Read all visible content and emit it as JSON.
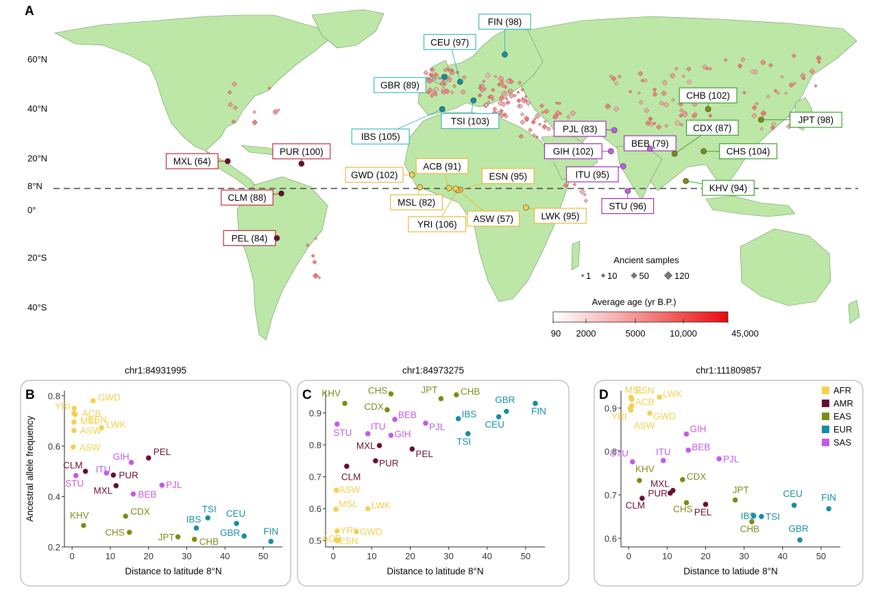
{
  "panel_a": {
    "letter": "A",
    "lat_labels": [
      {
        "text": "60°N",
        "lat": 60
      },
      {
        "text": "40°N",
        "lat": 40
      },
      {
        "text": "20°N",
        "lat": 20
      },
      {
        "text": "8°N",
        "lat": 8
      },
      {
        "text": "0°",
        "lat": 0
      },
      {
        "text": "20°S",
        "lat": -20
      },
      {
        "text": "40°S",
        "lat": -40
      }
    ],
    "populations": [
      {
        "label": "FIN (98)",
        "group": "EUR",
        "lon": 25,
        "lat": 62
      },
      {
        "label": "CEU (97)",
        "group": "EUR",
        "lon": 5,
        "lat": 51
      },
      {
        "label": "GBR (89)",
        "group": "EUR",
        "lon": -2,
        "lat": 53
      },
      {
        "label": "IBS (105)",
        "group": "EUR",
        "lon": -3,
        "lat": 40
      },
      {
        "label": "TSI (103)",
        "group": "EUR",
        "lon": 11,
        "lat": 43.5
      },
      {
        "label": "CHB (102)",
        "group": "EAS",
        "lon": 116,
        "lat": 40
      },
      {
        "label": "JPT (98)",
        "group": "EAS",
        "lon": 139.7,
        "lat": 35.7
      },
      {
        "label": "CDX (87)",
        "group": "EAS",
        "lon": 101,
        "lat": 22
      },
      {
        "label": "CHS (104)",
        "group": "EAS",
        "lon": 114,
        "lat": 23
      },
      {
        "label": "KHV (94)",
        "group": "EAS",
        "lon": 106,
        "lat": 11
      },
      {
        "label": "PJL (83)",
        "group": "SAS",
        "lon": 74,
        "lat": 31.5
      },
      {
        "label": "BEB (79)",
        "group": "SAS",
        "lon": 90,
        "lat": 24
      },
      {
        "label": "GIH (102)",
        "group": "SAS",
        "lon": 72.5,
        "lat": 23
      },
      {
        "label": "ITU (95)",
        "group": "SAS",
        "lon": 78,
        "lat": 17
      },
      {
        "label": "STU (96)",
        "group": "SAS",
        "lon": 80,
        "lat": 7
      },
      {
        "label": "MXL (64)",
        "group": "AMR",
        "lon": -99,
        "lat": 19
      },
      {
        "label": "PUR (100)",
        "group": "AMR",
        "lon": -66,
        "lat": 18
      },
      {
        "label": "CLM (88)",
        "group": "AMR",
        "lon": -75,
        "lat": 6
      },
      {
        "label": "PEL (84)",
        "group": "AMR",
        "lon": -77,
        "lat": -12
      },
      {
        "label": "GWD (102)",
        "group": "AFR",
        "lon": -16.5,
        "lat": 13.5
      },
      {
        "label": "MSL (82)",
        "group": "AFR",
        "lon": -13,
        "lat": 8.5
      },
      {
        "label": "ACB (91)",
        "group": "AFR",
        "lon": 0,
        "lat": 8.2
      },
      {
        "label": "ESN (95)",
        "group": "AFR",
        "lon": 5,
        "lat": 7.5
      },
      {
        "label": "YRI (106)",
        "group": "AFR",
        "lon": 3.9,
        "lat": 7.4
      },
      {
        "label": "ASW (57)",
        "group": "AFR",
        "lon": 3,
        "lat": 8
      },
      {
        "label": "LWK (95)",
        "group": "AFR",
        "lon": 34.5,
        "lat": 0.3
      }
    ],
    "ancient_legend": {
      "title": "Ancient samples",
      "sizes": [
        "1",
        "10",
        "50",
        "120"
      ]
    },
    "age_legend": {
      "title": "Average age (yr B.P.)",
      "ticks": [
        "90",
        "2000",
        "5000",
        "10,000",
        "45,000"
      ]
    }
  },
  "group_legend": {
    "items": [
      {
        "name": "AFR",
        "color": "#F5D04E"
      },
      {
        "name": "AMR",
        "color": "#6B0E2E"
      },
      {
        "name": "EAS",
        "color": "#7D8C16"
      },
      {
        "name": "EUR",
        "color": "#138FA3"
      },
      {
        "name": "SAS",
        "color": "#C25BE6"
      }
    ]
  },
  "colors": {
    "AFR": "#F5D04E",
    "AMR": "#6B0E2E",
    "EAS": "#7D8C16",
    "EUR": "#138FA3",
    "SAS": "#C25BE6",
    "land": "#BDE7A6",
    "box_AFR": "#E8B83A",
    "box_AMR": "#C0283C",
    "box_EAS": "#3D9C31",
    "box_EUR": "#3EB6C7",
    "box_SAS": "#9B2FB8"
  },
  "chart_data": [
    {
      "type": "scatter",
      "panel": "B",
      "title": "chr1:84931995",
      "xlabel": "Distance to latitude 8°N",
      "ylabel": "Ancestral allele frequency",
      "xlim": [
        -2,
        55
      ],
      "ylim": [
        0.2,
        0.82
      ],
      "xticks": [
        0,
        10,
        20,
        30,
        40,
        50
      ],
      "yticks": [
        0.2,
        0.4,
        0.6,
        0.8
      ],
      "points": [
        {
          "label": "YRI",
          "group": "AFR",
          "x": 0.6,
          "y": 0.75
        },
        {
          "label": "GWD",
          "group": "AFR",
          "x": 5.5,
          "y": 0.78
        },
        {
          "label": "ESN",
          "group": "AFR",
          "x": 0.5,
          "y": 0.73
        },
        {
          "label": "ACB",
          "group": "AFR",
          "x": 0.8,
          "y": 0.725
        },
        {
          "label": "LWK",
          "group": "AFR",
          "x": 7.7,
          "y": 0.673
        },
        {
          "label": "MSL",
          "group": "AFR",
          "x": 0.5,
          "y": 0.695
        },
        {
          "label": "ASW",
          "group": "AFR",
          "x": 0.5,
          "y": 0.662
        },
        {
          "label": "ASW2",
          "group": "AFR",
          "x": 0.3,
          "y": 0.596
        },
        {
          "label": "PEL",
          "group": "AMR",
          "x": 20,
          "y": 0.553
        },
        {
          "label": "CLM",
          "group": "AMR",
          "x": 3.5,
          "y": 0.5
        },
        {
          "label": "PUR",
          "group": "AMR",
          "x": 10.8,
          "y": 0.485
        },
        {
          "label": "MXL",
          "group": "AMR",
          "x": 11.5,
          "y": 0.443
        },
        {
          "label": "GIH",
          "group": "SAS",
          "x": 15.5,
          "y": 0.535
        },
        {
          "label": "ITU",
          "group": "SAS",
          "x": 9,
          "y": 0.493
        },
        {
          "label": "STU",
          "group": "SAS",
          "x": 1,
          "y": 0.483
        },
        {
          "label": "PJL",
          "group": "SAS",
          "x": 23.5,
          "y": 0.445
        },
        {
          "label": "BEB",
          "group": "SAS",
          "x": 16,
          "y": 0.41
        },
        {
          "label": "CDX",
          "group": "EAS",
          "x": 14,
          "y": 0.322
        },
        {
          "label": "KHV",
          "group": "EAS",
          "x": 3,
          "y": 0.285
        },
        {
          "label": "CHS",
          "group": "EAS",
          "x": 15,
          "y": 0.258
        },
        {
          "label": "JPT",
          "group": "EAS",
          "x": 27.7,
          "y": 0.24
        },
        {
          "label": "CHB",
          "group": "EAS",
          "x": 32,
          "y": 0.23
        },
        {
          "label": "TSI",
          "group": "EUR",
          "x": 35.5,
          "y": 0.315
        },
        {
          "label": "IBS",
          "group": "EUR",
          "x": 32.5,
          "y": 0.275
        },
        {
          "label": "CEU",
          "group": "EUR",
          "x": 43,
          "y": 0.293
        },
        {
          "label": "GBR",
          "group": "EUR",
          "x": 45,
          "y": 0.243
        },
        {
          "label": "FIN",
          "group": "EUR",
          "x": 52,
          "y": 0.222
        }
      ]
    },
    {
      "type": "scatter",
      "panel": "C",
      "title": "chr1:84973275",
      "xlabel": "Distance to latitude 8°N",
      "ylabel": "",
      "xlim": [
        -2,
        55
      ],
      "ylim": [
        0.48,
        0.97
      ],
      "xticks": [
        0,
        10,
        20,
        30,
        40,
        50
      ],
      "yticks": [
        0.5,
        0.6,
        0.7,
        0.8,
        0.9
      ],
      "points": [
        {
          "label": "KHV",
          "group": "EAS",
          "x": 3,
          "y": 0.93
        },
        {
          "label": "CHS",
          "group": "EAS",
          "x": 15,
          "y": 0.96
        },
        {
          "label": "CDX",
          "group": "EAS",
          "x": 14,
          "y": 0.91
        },
        {
          "label": "JPT",
          "group": "EAS",
          "x": 28,
          "y": 0.945
        },
        {
          "label": "CHB",
          "group": "EAS",
          "x": 32,
          "y": 0.957
        },
        {
          "label": "GBR",
          "group": "EUR",
          "x": 45,
          "y": 0.905
        },
        {
          "label": "FIN",
          "group": "EUR",
          "x": 52.5,
          "y": 0.93
        },
        {
          "label": "CEU",
          "group": "EUR",
          "x": 43,
          "y": 0.888
        },
        {
          "label": "IBS",
          "group": "EUR",
          "x": 32.5,
          "y": 0.882
        },
        {
          "label": "TSI",
          "group": "EUR",
          "x": 35,
          "y": 0.835
        },
        {
          "label": "BEB",
          "group": "SAS",
          "x": 16,
          "y": 0.88
        },
        {
          "label": "STU",
          "group": "SAS",
          "x": 1,
          "y": 0.865
        },
        {
          "label": "ITU",
          "group": "SAS",
          "x": 9,
          "y": 0.835
        },
        {
          "label": "GIH",
          "group": "SAS",
          "x": 15,
          "y": 0.83
        },
        {
          "label": "PJL",
          "group": "SAS",
          "x": 24,
          "y": 0.868
        },
        {
          "label": "MXL",
          "group": "AMR",
          "x": 12,
          "y": 0.798
        },
        {
          "label": "PEL",
          "group": "AMR",
          "x": 20.5,
          "y": 0.787
        },
        {
          "label": "PUR",
          "group": "AMR",
          "x": 11,
          "y": 0.75
        },
        {
          "label": "CLM",
          "group": "AMR",
          "x": 3.5,
          "y": 0.733
        },
        {
          "label": "ASW",
          "group": "AFR",
          "x": 0.8,
          "y": 0.658
        },
        {
          "label": "MSL",
          "group": "AFR",
          "x": 0.7,
          "y": 0.598
        },
        {
          "label": "LWK",
          "group": "AFR",
          "x": 9,
          "y": 0.6
        },
        {
          "label": "ACB",
          "group": "AFR",
          "x": 1,
          "y": 0.53
        },
        {
          "label": "YRI",
          "group": "AFR",
          "x": 1.2,
          "y": 0.5
        },
        {
          "label": "GWD",
          "group": "AFR",
          "x": 6,
          "y": 0.528
        },
        {
          "label": "ESN",
          "group": "AFR",
          "x": 0.8,
          "y": 0.502
        }
      ]
    },
    {
      "type": "scatter",
      "panel": "D",
      "title": "chr1:111809857",
      "xlabel": "Distance to latiude 8°N",
      "ylabel": "",
      "xlim": [
        -2,
        55
      ],
      "ylim": [
        0.58,
        0.94
      ],
      "xticks": [
        0,
        10,
        20,
        30,
        40,
        50
      ],
      "yticks": [
        0.6,
        0.7,
        0.8,
        0.9
      ],
      "points": [
        {
          "label": "MSL",
          "group": "AFR",
          "x": 0.6,
          "y": 0.925
        },
        {
          "label": "ESN",
          "group": "AFR",
          "x": 0.8,
          "y": 0.92
        },
        {
          "label": "LWK",
          "group": "AFR",
          "x": 8,
          "y": 0.925
        },
        {
          "label": "ACB",
          "group": "AFR",
          "x": 0.8,
          "y": 0.905
        },
        {
          "label": "GWD",
          "group": "AFR",
          "x": 5.5,
          "y": 0.888
        },
        {
          "label": "YRI",
          "group": "AFR",
          "x": 0.6,
          "y": 0.895
        },
        {
          "label": "ASW",
          "group": "AFR",
          "x": 0.4,
          "y": 0.9
        },
        {
          "label": "GIH",
          "group": "SAS",
          "x": 15,
          "y": 0.84
        },
        {
          "label": "BEB",
          "group": "SAS",
          "x": 15.5,
          "y": 0.803
        },
        {
          "label": "PJL",
          "group": "SAS",
          "x": 23.5,
          "y": 0.783
        },
        {
          "label": "STU",
          "group": "SAS",
          "x": 1,
          "y": 0.776
        },
        {
          "label": "ITU",
          "group": "SAS",
          "x": 9,
          "y": 0.779
        },
        {
          "label": "KHV",
          "group": "EAS",
          "x": 2.8,
          "y": 0.733
        },
        {
          "label": "CDX",
          "group": "EAS",
          "x": 14,
          "y": 0.735
        },
        {
          "label": "JPT",
          "group": "EAS",
          "x": 27.7,
          "y": 0.688
        },
        {
          "label": "CHS",
          "group": "EAS",
          "x": 15,
          "y": 0.682
        },
        {
          "label": "CHB",
          "group": "EAS",
          "x": 32,
          "y": 0.638
        },
        {
          "label": "MXL",
          "group": "AMR",
          "x": 11.5,
          "y": 0.71
        },
        {
          "label": "PUR",
          "group": "AMR",
          "x": 10.8,
          "y": 0.704
        },
        {
          "label": "CLM",
          "group": "AMR",
          "x": 3.5,
          "y": 0.692
        },
        {
          "label": "PEL",
          "group": "AMR",
          "x": 20,
          "y": 0.678
        },
        {
          "label": "IBS",
          "group": "EUR",
          "x": 32.5,
          "y": 0.652
        },
        {
          "label": "TSI",
          "group": "EUR",
          "x": 34.5,
          "y": 0.65
        },
        {
          "label": "CEU",
          "group": "EUR",
          "x": 43,
          "y": 0.676
        },
        {
          "label": "FIN",
          "group": "EUR",
          "x": 52,
          "y": 0.668
        },
        {
          "label": "GBR",
          "group": "EUR",
          "x": 44.5,
          "y": 0.596
        }
      ]
    }
  ]
}
